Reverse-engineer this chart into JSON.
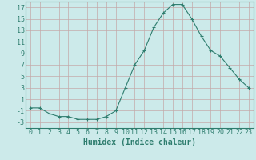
{
  "x": [
    0,
    1,
    2,
    3,
    4,
    5,
    6,
    7,
    8,
    9,
    10,
    11,
    12,
    13,
    14,
    15,
    16,
    17,
    18,
    19,
    20,
    21,
    22,
    23
  ],
  "y": [
    -0.5,
    -0.5,
    -1.5,
    -2.0,
    -2.0,
    -2.5,
    -2.5,
    -2.5,
    -2.0,
    -1.0,
    3.0,
    7.0,
    9.5,
    13.5,
    16.0,
    17.5,
    17.5,
    15.0,
    12.0,
    9.5,
    8.5,
    6.5,
    4.5,
    3.0
  ],
  "xlabel": "Humidex (Indice chaleur)",
  "xlim": [
    -0.5,
    23.5
  ],
  "ylim": [
    -4,
    18
  ],
  "yticks": [
    -3,
    -1,
    1,
    3,
    5,
    7,
    9,
    11,
    13,
    15,
    17
  ],
  "xticks": [
    0,
    1,
    2,
    3,
    4,
    5,
    6,
    7,
    8,
    9,
    10,
    11,
    12,
    13,
    14,
    15,
    16,
    17,
    18,
    19,
    20,
    21,
    22,
    23
  ],
  "line_color": "#2e7d6e",
  "marker": "+",
  "bg_color": "#cceaea",
  "grid_color": "#c4a8a8",
  "xlabel_fontsize": 7,
  "tick_fontsize": 6
}
